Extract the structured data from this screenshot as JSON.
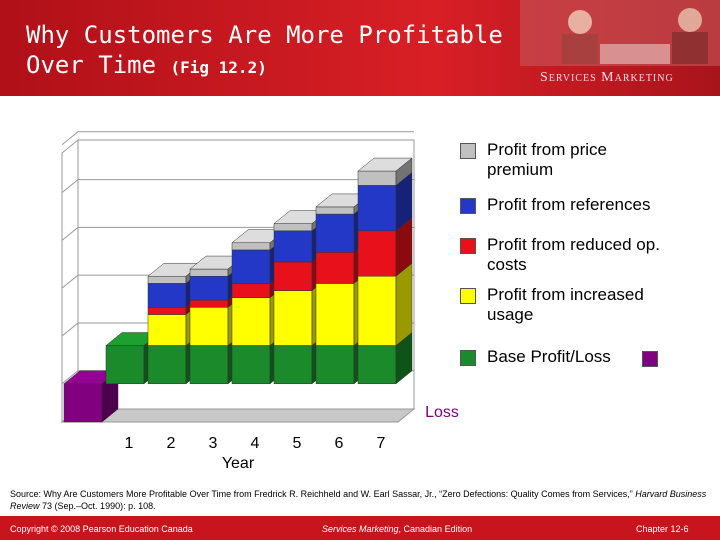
{
  "header": {
    "title_line1": "Why Customers Are More Profitable",
    "title_line2": "Over Time",
    "figure": "(Fig 12.2)",
    "banner": "Services Marketing"
  },
  "chart_data": {
    "type": "bar3d_stacked",
    "categories": [
      null,
      "1",
      "2",
      "3",
      "4",
      "5",
      "6",
      "7"
    ],
    "x_label": "Year",
    "annotation": "Loss",
    "ylim": [
      -0.8,
      5.1
    ],
    "yticks": [
      0,
      1,
      2,
      3,
      4,
      5
    ],
    "grid": true,
    "series": [
      {
        "name": "Profit from price premium",
        "color": "#c0c0c0",
        "values": [
          null,
          null,
          0.15,
          0.15,
          0.15,
          0.15,
          0.15,
          0.3
        ]
      },
      {
        "name": "Profit from references",
        "color": "#2438c8",
        "values": [
          null,
          null,
          0.5,
          0.5,
          0.7,
          0.65,
          0.8,
          0.95
        ]
      },
      {
        "name": "Profit from reduced op. costs",
        "color": "#e8101a",
        "values": [
          null,
          null,
          0.15,
          0.15,
          0.3,
          0.6,
          0.65,
          0.95
        ]
      },
      {
        "name": "Profit from increased usage",
        "color": "#ffff00",
        "values": [
          null,
          null,
          0.65,
          0.8,
          1.0,
          1.15,
          1.3,
          1.45
        ]
      },
      {
        "name": "Base Profit/Loss",
        "color": "#1a8a2a",
        "negative_color": "#800080",
        "values": [
          -0.8,
          0.8,
          0.8,
          0.8,
          0.8,
          0.8,
          0.8,
          0.8
        ]
      }
    ]
  },
  "source": {
    "before": "Source: Why Are Customers More Profitable Over Time from Fredrick R. Reichheld  and W. Earl Sassar, Jr., “Zero Defections: Quality Comes from Services,”",
    "journal": "Harvard Business Review",
    "after": "73 (Sep.–Oct. 1990): p. 108."
  },
  "footer": {
    "copyright": "Copyright © 2008 Pearson Education Canada",
    "book": "Services Marketing",
    "edition": ", Canadian Edition",
    "chapter": "Chapter 12-6"
  }
}
